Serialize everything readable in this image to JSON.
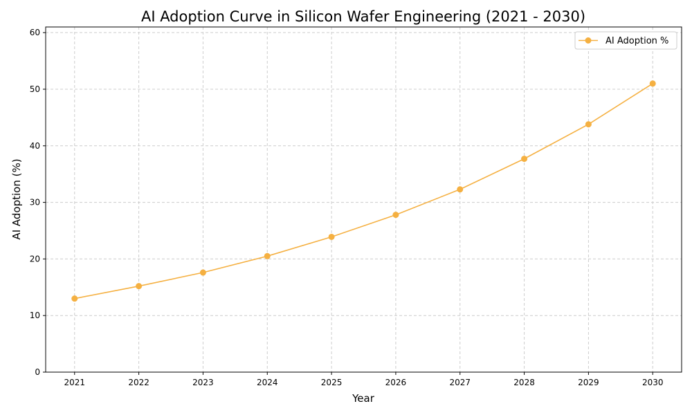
{
  "chart_data": {
    "type": "line",
    "title": "AI Adoption Curve in Silicon Wafer Engineering (2021 - 2030)",
    "xlabel": "Year",
    "ylabel": "AI Adoption (%)",
    "x": [
      2021,
      2022,
      2023,
      2024,
      2025,
      2026,
      2027,
      2028,
      2029,
      2030
    ],
    "series": [
      {
        "name": "AI Adoption %",
        "values": [
          13.0,
          15.2,
          17.6,
          20.5,
          23.9,
          27.8,
          32.3,
          37.7,
          43.8,
          51.0
        ],
        "color": "#f5b041",
        "marker": "circle"
      }
    ],
    "xlim": [
      2020.55,
      2030.45
    ],
    "ylim": [
      0,
      61
    ],
    "yticks": [
      0,
      10,
      20,
      30,
      40,
      50,
      60
    ],
    "xticks": [
      2021,
      2022,
      2023,
      2024,
      2025,
      2026,
      2027,
      2028,
      2029,
      2030
    ],
    "grid": true,
    "grid_style": "dashed",
    "legend_position": "top-right"
  }
}
